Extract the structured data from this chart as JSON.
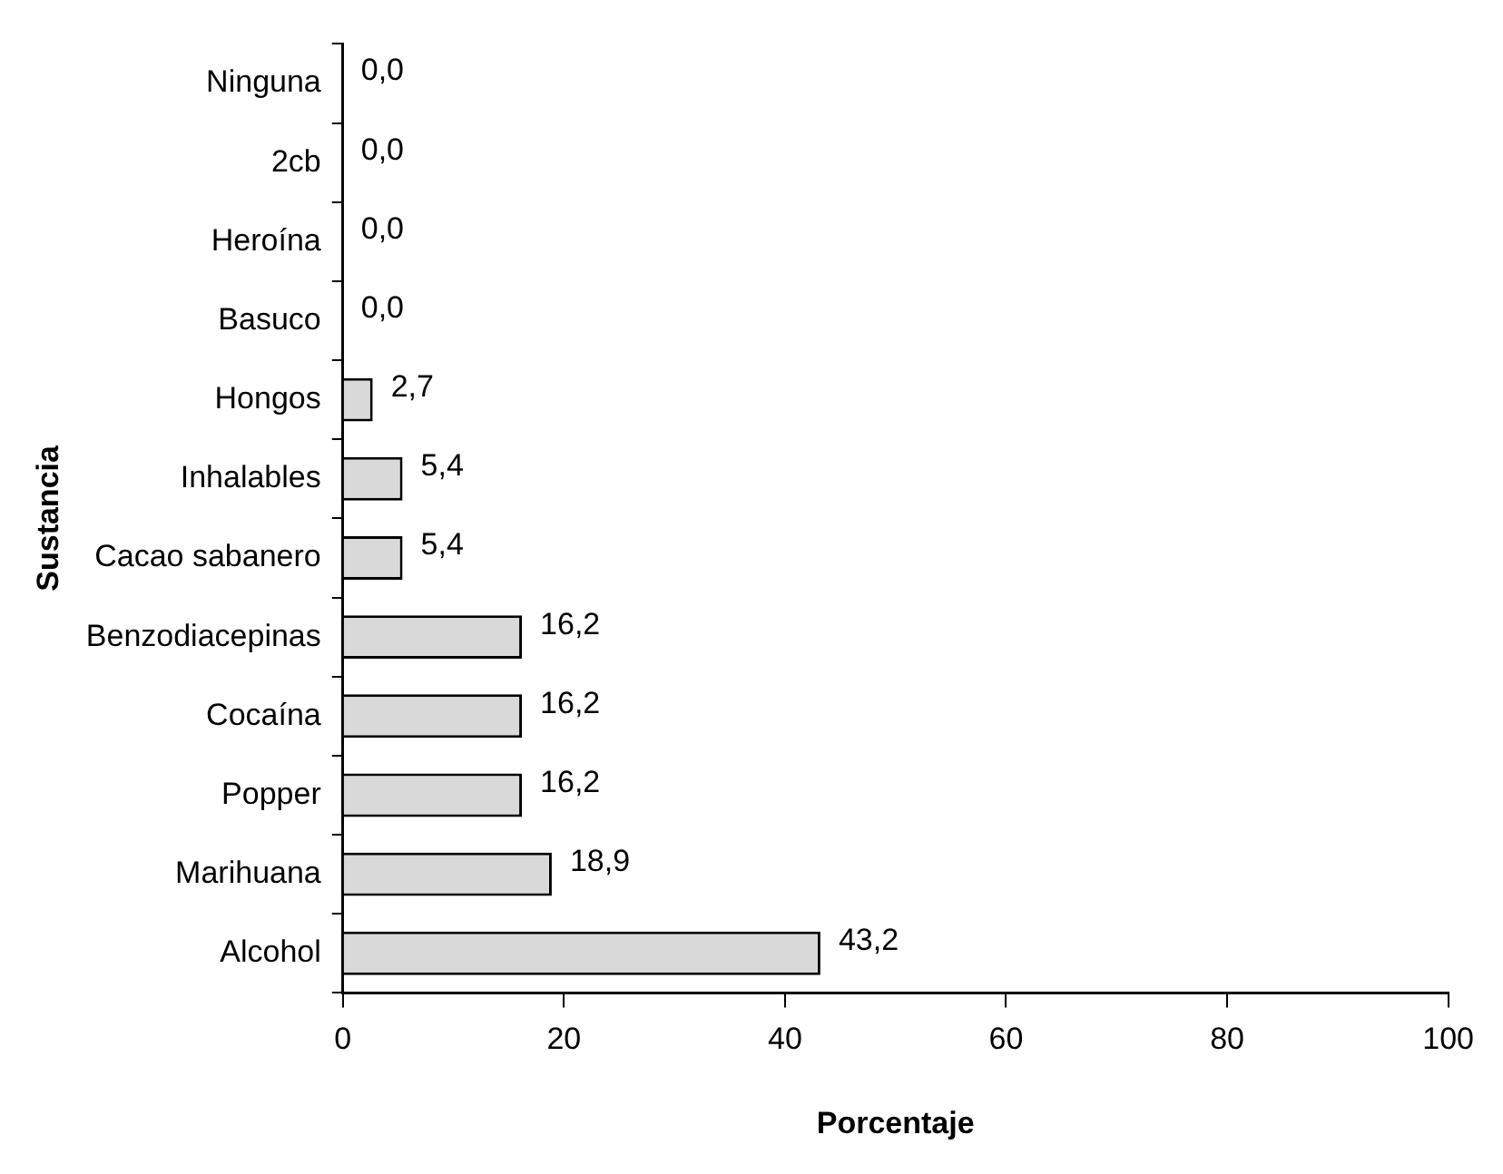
{
  "chart_data": {
    "type": "bar",
    "orientation": "horizontal",
    "xlabel": "Porcentaje",
    "ylabel": "Sustancia",
    "categories": [
      "Ninguna",
      "2cb",
      "Heroína",
      "Basuco",
      "Hongos",
      "Inhalables",
      "Cacao sabanero",
      "Benzodiacepinas",
      "Cocaína",
      "Popper",
      "Marihuana",
      "Alcohol"
    ],
    "values": [
      0,
      0,
      0,
      0,
      2.7,
      5.4,
      5.4,
      16.2,
      16.2,
      16.2,
      18.9,
      43.2
    ],
    "value_labels": [
      "0,0",
      "0,0",
      "0,0",
      "0,0",
      "2,7",
      "5,4",
      "5,4",
      "16,2",
      "16,2",
      "16,2",
      "18,9",
      "43,2"
    ],
    "color": "#d9d9d9",
    "xlim": [
      0,
      100
    ],
    "xticks": [
      0,
      20,
      40,
      60,
      80,
      100
    ],
    "grid": false,
    "legend": false
  }
}
